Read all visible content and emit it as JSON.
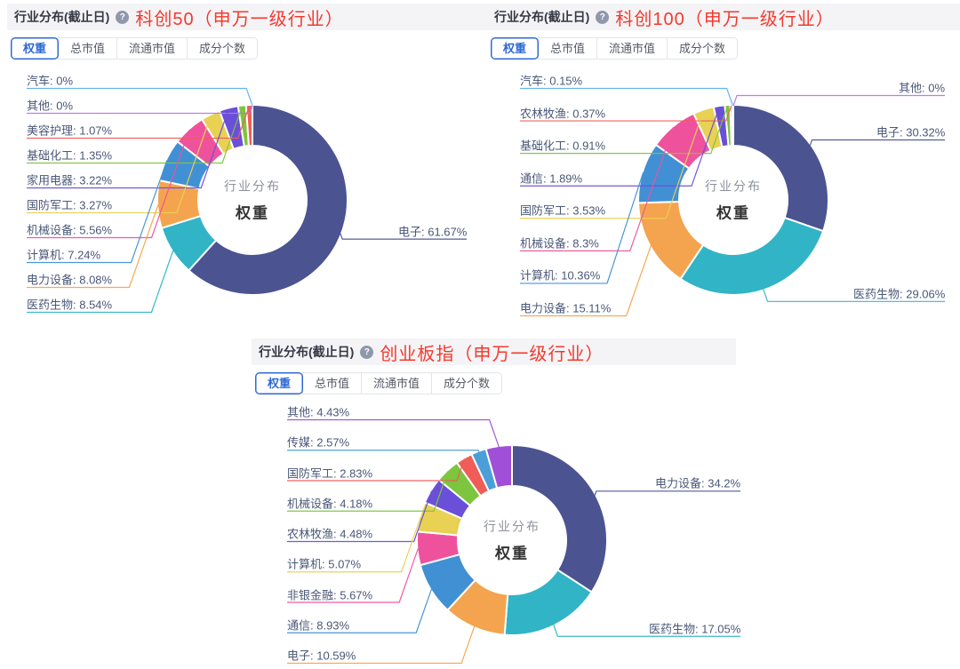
{
  "accent": {
    "title_red": "#f4392d",
    "active_tab_blue": "#2e68d5",
    "label_text": "#4a5878",
    "header_band_bg": "#f4f4f6"
  },
  "chart_data": [
    {
      "type": "pie",
      "header_label": "行业分布(截止日)",
      "help_icon": "question-mark",
      "title": "科创50（申万一级行业）",
      "tabs": [
        {
          "label": "权重",
          "active": true
        },
        {
          "label": "总市值",
          "active": false
        },
        {
          "label": "流通市值",
          "active": false
        },
        {
          "label": "成分个数",
          "active": false
        }
      ],
      "center": {
        "line1": "行业分布",
        "line2": "权重"
      },
      "slices": [
        {
          "name": "电子",
          "value": 61.67,
          "color": "#4b5391",
          "label_side": "right"
        },
        {
          "name": "医药生物",
          "value": 8.54,
          "color": "#31b4c6",
          "label_side": "left"
        },
        {
          "name": "电力设备",
          "value": 8.08,
          "color": "#f4a44e",
          "label_side": "left"
        },
        {
          "name": "计算机",
          "value": 7.24,
          "color": "#4190d4",
          "label_side": "left"
        },
        {
          "name": "机械设备",
          "value": 5.56,
          "color": "#ef529d",
          "label_side": "left"
        },
        {
          "name": "国防军工",
          "value": 3.27,
          "color": "#e8d153",
          "label_side": "left"
        },
        {
          "name": "家用电器",
          "value": 3.22,
          "color": "#6a4fd8",
          "label_side": "left"
        },
        {
          "name": "基础化工",
          "value": 1.35,
          "color": "#7dc53e",
          "label_side": "left"
        },
        {
          "name": "美容护理",
          "value": 1.07,
          "color": "#f05c58",
          "label_side": "left"
        },
        {
          "name": "汽车",
          "value": 0,
          "color": "#5fb0ee",
          "label_side": "left"
        },
        {
          "name": "其他",
          "value": 0,
          "color": "#b578e8",
          "label_side": "left"
        }
      ]
    },
    {
      "type": "pie",
      "header_label": "行业分布(截止日)",
      "help_icon": "question-mark",
      "title": "科创100（申万一级行业）",
      "tabs": [
        {
          "label": "权重",
          "active": true
        },
        {
          "label": "总市值",
          "active": false
        },
        {
          "label": "流通市值",
          "active": false
        },
        {
          "label": "成分个数",
          "active": false
        }
      ],
      "center": {
        "line1": "行业分布",
        "line2": "权重"
      },
      "slices": [
        {
          "name": "电子",
          "value": 30.32,
          "color": "#4b5391",
          "label_side": "right"
        },
        {
          "name": "医药生物",
          "value": 29.06,
          "color": "#31b4c6",
          "label_side": "right"
        },
        {
          "name": "电力设备",
          "value": 15.11,
          "color": "#f4a44e",
          "label_side": "left"
        },
        {
          "name": "计算机",
          "value": 10.36,
          "color": "#4190d4",
          "label_side": "left"
        },
        {
          "name": "机械设备",
          "value": 8.3,
          "color": "#ef529d",
          "label_side": "left"
        },
        {
          "name": "国防军工",
          "value": 3.53,
          "color": "#e8d153",
          "label_side": "left"
        },
        {
          "name": "通信",
          "value": 1.89,
          "color": "#6a4fd8",
          "label_side": "left"
        },
        {
          "name": "基础化工",
          "value": 0.91,
          "color": "#7dc53e",
          "label_side": "left"
        },
        {
          "name": "农林牧渔",
          "value": 0.37,
          "color": "#f05c58",
          "label_side": "left"
        },
        {
          "name": "汽车",
          "value": 0.15,
          "color": "#5fb0ee",
          "label_side": "left"
        },
        {
          "name": "其他",
          "value": 0,
          "color": "#b578e8",
          "label_side": "right"
        }
      ]
    },
    {
      "type": "pie",
      "header_label": "行业分布(截止日)",
      "help_icon": "question-mark",
      "title": "创业板指（申万一级行业）",
      "tabs": [
        {
          "label": "权重",
          "active": true
        },
        {
          "label": "总市值",
          "active": false
        },
        {
          "label": "流通市值",
          "active": false
        },
        {
          "label": "成分个数",
          "active": false
        }
      ],
      "center": {
        "line1": "行业分布",
        "line2": "权重"
      },
      "slices": [
        {
          "name": "电力设备",
          "value": 34.2,
          "color": "#4b5391",
          "label_side": "right"
        },
        {
          "name": "医药生物",
          "value": 17.05,
          "color": "#31b4c6",
          "label_side": "right"
        },
        {
          "name": "电子",
          "value": 10.59,
          "color": "#f4a44e",
          "label_side": "left"
        },
        {
          "name": "通信",
          "value": 8.93,
          "color": "#4190d4",
          "label_side": "left"
        },
        {
          "name": "非银金融",
          "value": 5.67,
          "color": "#ef529d",
          "label_side": "left"
        },
        {
          "name": "计算机",
          "value": 5.07,
          "color": "#e8d153",
          "label_side": "left"
        },
        {
          "name": "农林牧渔",
          "value": 4.48,
          "color": "#6a4fd8",
          "label_side": "left"
        },
        {
          "name": "机械设备",
          "value": 4.18,
          "color": "#7dc53e",
          "label_side": "left"
        },
        {
          "name": "国防军工",
          "value": 2.83,
          "color": "#f05c58",
          "label_side": "left"
        },
        {
          "name": "传媒",
          "value": 2.57,
          "color": "#4a9fd8",
          "label_side": "left"
        },
        {
          "name": "其他",
          "value": 4.43,
          "color": "#a04fd8",
          "label_side": "left"
        }
      ]
    }
  ]
}
